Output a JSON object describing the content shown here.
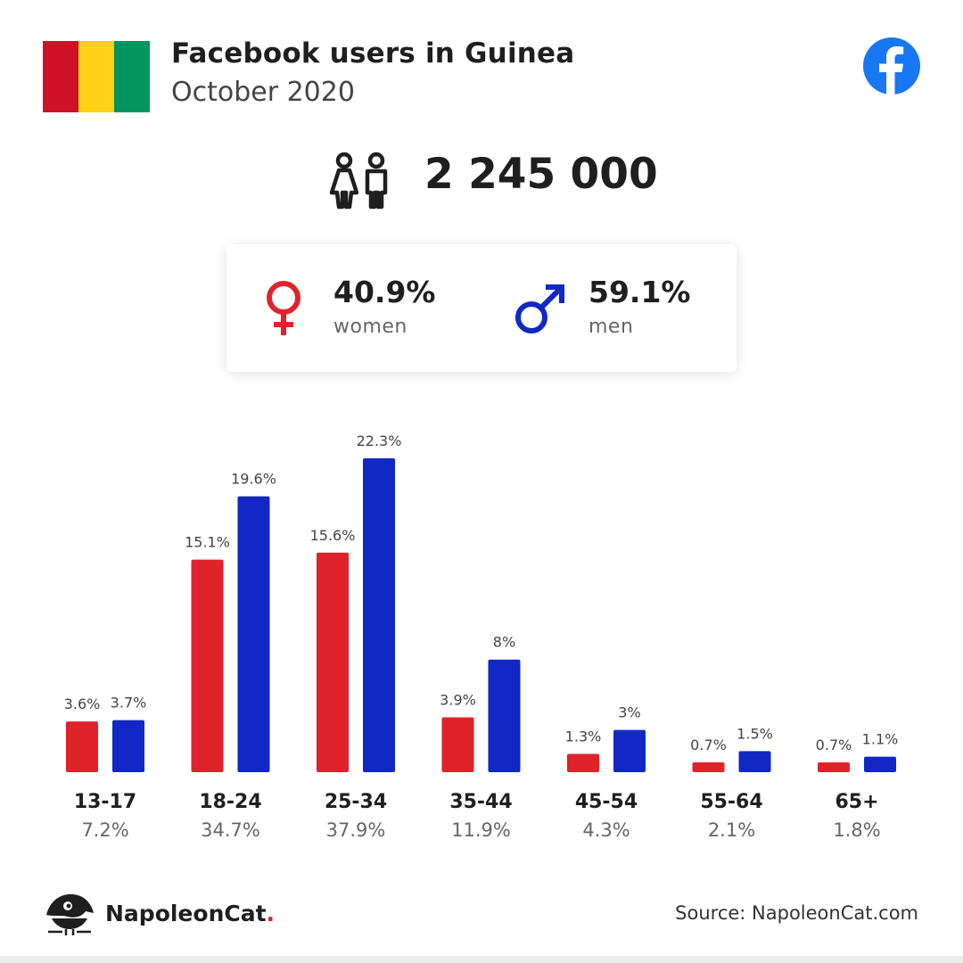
{
  "header": {
    "title": "Facebook users in Guinea",
    "subtitle": "October 2020",
    "flag_colors": [
      "#ce1126",
      "#fcd116",
      "#009460"
    ]
  },
  "summary": {
    "total_users": "2 245 000",
    "icon": "people-icon",
    "women": {
      "percent": "40.9%",
      "label": "women",
      "icon": "female-symbol-icon",
      "color": "#e0222a"
    },
    "men": {
      "percent": "59.1%",
      "label": "men",
      "icon": "male-symbol-icon",
      "color": "#1128c4"
    }
  },
  "chart_data": {
    "type": "bar",
    "categories": [
      "13-17",
      "18-24",
      "25-34",
      "35-44",
      "45-54",
      "55-64",
      "65+"
    ],
    "category_totals": [
      "7.2%",
      "34.7%",
      "37.9%",
      "11.9%",
      "4.3%",
      "2.1%",
      "1.8%"
    ],
    "series": [
      {
        "values": [
          3.6,
          15.1,
          15.6,
          3.9,
          1.3,
          0.7,
          0.7
        ],
        "labels": [
          "3.6%",
          "15.1%",
          "15.6%",
          "3.9%",
          "1.3%",
          "0.7%",
          "0.7%"
        ],
        "color": "#e0222a"
      },
      {
        "values": [
          3.7,
          19.6,
          22.3,
          8,
          3,
          1.5,
          1.1
        ],
        "labels": [
          "3.7%",
          "19.6%",
          "22.3%",
          "8%",
          "3%",
          "1.5%",
          "1.1%"
        ],
        "color": "#1128c4"
      }
    ],
    "ylim": [
      0,
      22.3
    ],
    "grid": false
  },
  "footer": {
    "brand_name": "NapoleonCat",
    "brand_dot": ".",
    "source": "Source: NapoleonCat.com",
    "facebook_icon": "facebook-logo-icon"
  }
}
